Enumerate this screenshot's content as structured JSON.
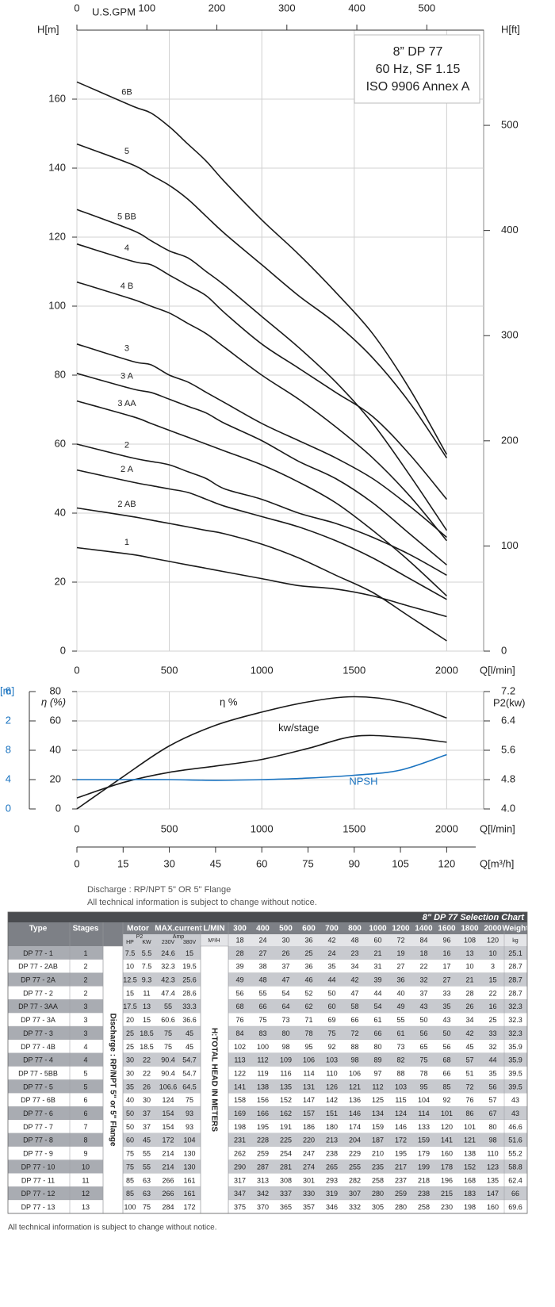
{
  "chart_data": [
    {
      "type": "line",
      "title_lines": [
        "8” DP 77",
        "60 Hz, SF 1.15",
        "ISO 9906 Annex A"
      ],
      "x_label": "Q[l/min]",
      "y_label": "H[m]",
      "y2_label": "H[ft]",
      "x2_label": "U.S.GPM",
      "x": [
        0,
        300,
        400,
        500,
        600,
        700,
        800,
        1000,
        1200,
        1400,
        1600,
        1800,
        2000
      ],
      "xlim": [
        0,
        2200
      ],
      "xticks": [
        0,
        500,
        1000,
        1500,
        2000
      ],
      "x2lim": [
        0,
        581.2
      ],
      "x2ticks": [
        0,
        100,
        200,
        300,
        400,
        500
      ],
      "ylim": [
        0,
        180
      ],
      "yticks": [
        0,
        20,
        40,
        60,
        80,
        100,
        120,
        140,
        160
      ],
      "y2lim": [
        0,
        590.55
      ],
      "y2ticks": [
        0,
        100,
        200,
        300,
        400,
        500
      ],
      "grid": true,
      "series": [
        {
          "name": "6B",
          "color": "#1a1a1a",
          "values": [
            165,
            158,
            156,
            152,
            147,
            142,
            136,
            125,
            115,
            104,
            92,
            76,
            57
          ]
        },
        {
          "name": "5",
          "color": "#1a1a1a",
          "values": [
            147,
            141,
            138,
            135,
            131,
            126,
            121,
            112,
            103,
            95,
            85,
            72,
            56
          ]
        },
        {
          "name": "5 BB",
          "color": "#1a1a1a",
          "values": [
            128,
            122,
            119,
            116,
            114,
            110,
            106,
            97,
            88,
            78,
            66,
            51,
            35
          ]
        },
        {
          "name": "4",
          "color": "#1a1a1a",
          "values": [
            118,
            113,
            112,
            109,
            106,
            103,
            98,
            89,
            82,
            75,
            68,
            57,
            44
          ]
        },
        {
          "name": "4 B",
          "color": "#1a1a1a",
          "values": [
            107,
            102,
            100,
            98,
            95,
            92,
            88,
            80,
            73,
            65,
            56,
            45,
            32
          ]
        },
        {
          "name": "3",
          "color": "#1a1a1a",
          "values": [
            89,
            84,
            83,
            80,
            78,
            75,
            72,
            66,
            61,
            56,
            50,
            42,
            33
          ]
        },
        {
          "name": "3 A",
          "color": "#1a1a1a",
          "values": [
            80.5,
            76,
            75,
            73,
            71,
            69,
            66,
            61,
            55,
            50,
            43,
            34,
            25
          ]
        },
        {
          "name": "3 AA",
          "color": "#1a1a1a",
          "values": [
            72.5,
            68,
            66,
            64,
            62,
            60,
            58,
            54,
            49,
            43,
            35,
            26,
            16
          ]
        },
        {
          "name": "2",
          "color": "#1a1a1a",
          "values": [
            60,
            56,
            55,
            54,
            52,
            50,
            47,
            44,
            40,
            37,
            33,
            28,
            22
          ]
        },
        {
          "name": "2 A",
          "color": "#1a1a1a",
          "values": [
            52.5,
            49,
            48,
            47,
            46,
            44,
            42,
            39,
            36,
            32,
            27,
            21,
            15
          ]
        },
        {
          "name": "2 AB",
          "color": "#1a1a1a",
          "values": [
            41.5,
            39,
            38,
            37,
            36,
            35,
            34,
            31,
            27,
            22,
            17,
            10,
            3
          ]
        },
        {
          "name": "1",
          "color": "#1a1a1a",
          "values": [
            30,
            28,
            27,
            26,
            25,
            24,
            23,
            21,
            19,
            18,
            16,
            13,
            10
          ]
        }
      ]
    },
    {
      "type": "line",
      "x_label": "Q[l/min]",
      "x2_label": "Q[m³/h]",
      "y_label": "η (%)",
      "y2_label": "P2(kw)",
      "y3_label": "[m]",
      "y3_color": "#1a73c0",
      "x": [
        0,
        250,
        500,
        750,
        1000,
        1250,
        1500,
        1750,
        2000
      ],
      "xlim": [
        0,
        2200
      ],
      "xticks": [
        0,
        500,
        1000,
        1500,
        2000
      ],
      "x2lim": [
        0,
        132
      ],
      "x2ticks": [
        0,
        15,
        30,
        45,
        60,
        75,
        90,
        105,
        120
      ],
      "ylim": [
        0,
        80
      ],
      "yticks": [
        0,
        20,
        40,
        60,
        80
      ],
      "y2lim": [
        4.0,
        7.2
      ],
      "y2ticks": [
        {
          "value": 4.0,
          "label": "4.0"
        },
        {
          "value": 4.8,
          "label": "4.8"
        },
        {
          "value": 5.6,
          "label": "5.6"
        },
        {
          "value": 6.4,
          "label": "6.4"
        },
        {
          "value": 7.2,
          "label": "7.2"
        }
      ],
      "y3lim": [
        0,
        16
      ],
      "y3ticks": [
        0,
        4,
        8,
        {
          "value": 12,
          "label": "2"
        },
        {
          "value": 16,
          "label": "6"
        }
      ],
      "grid": true,
      "series": [
        {
          "name": "η %",
          "color": "#1a1a1a",
          "axis": "y",
          "values": [
            0,
            22,
            43,
            57,
            66,
            73,
            76.5,
            73,
            62
          ]
        },
        {
          "name": "kw/stage",
          "color": "#1a1a1a",
          "axis": "y2",
          "values": [
            4.3,
            4.72,
            5.0,
            5.17,
            5.35,
            5.65,
            5.98,
            5.96,
            5.82
          ]
        },
        {
          "name": "NPSH",
          "color": "#1a73c0",
          "axis": "y3",
          "values": [
            4.0,
            4.0,
            4.0,
            3.9,
            4.0,
            4.2,
            4.6,
            5.3,
            7.4
          ]
        }
      ]
    }
  ],
  "notes": [
    "Discharge : RP/NPT 5\" OR 5\" Flange",
    "All technical information is subject to change without notice."
  ],
  "table": {
    "title": "8\" DP 77  Selection Chart",
    "headers": [
      "Type",
      "Stages",
      "Motor",
      "MAX.current",
      "L/MIN",
      "Weight"
    ],
    "subheaders": [
      "P2",
      "HP",
      "KW",
      "Amp",
      "230V",
      "380V",
      "M³/H",
      "kg"
    ],
    "flows_lmin": [
      300,
      400,
      500,
      600,
      700,
      800,
      1000,
      1200,
      1400,
      1600,
      1800,
      2000
    ],
    "flows_m3h": [
      18,
      24,
      30,
      36,
      42,
      48,
      60,
      72,
      84,
      96,
      108,
      120
    ],
    "vertical_labels": [
      "Discharge : RP/NPT 5\" or 5\" Flange",
      "H:TOTAL HEAD IN METERS"
    ],
    "rows": [
      [
        "DP 77 - 1",
        1,
        7.5,
        5.5,
        24.6,
        15,
        28,
        27,
        26,
        25,
        24,
        23,
        21,
        19,
        18,
        16,
        13,
        10,
        25.1
      ],
      [
        "DP 77 - 2AB",
        2,
        10,
        7.5,
        32.3,
        19.5,
        39,
        38,
        37,
        36,
        35,
        34,
        31,
        27,
        22,
        17,
        10,
        3,
        28.7
      ],
      [
        "DP 77 - 2A",
        2,
        12.5,
        9.3,
        42.3,
        25.6,
        49,
        48,
        47,
        46,
        44,
        42,
        39,
        36,
        32,
        27,
        21,
        15,
        28.7
      ],
      [
        "DP 77 - 2",
        2,
        15,
        11,
        47.4,
        28.6,
        56,
        55,
        54,
        52,
        50,
        47,
        44,
        40,
        37,
        33,
        28,
        22,
        28.7
      ],
      [
        "DP 77 - 3AA",
        3,
        17.5,
        13,
        55,
        33.3,
        68,
        66,
        64,
        62,
        60,
        58,
        54,
        49,
        43,
        35,
        26,
        16,
        32.3
      ],
      [
        "DP 77 - 3A",
        3,
        20,
        15,
        60.6,
        36.6,
        76,
        75,
        73,
        71,
        69,
        66,
        61,
        55,
        50,
        43,
        34,
        25,
        32.3
      ],
      [
        "DP 77 - 3",
        3,
        25,
        18.5,
        75,
        45,
        84,
        83,
        80,
        78,
        75,
        72,
        66,
        61,
        56,
        50,
        42,
        33,
        32.3
      ],
      [
        "DP 77 - 4B",
        4,
        25,
        18.5,
        75,
        45,
        102,
        100,
        98,
        95,
        92,
        88,
        80,
        73,
        65,
        56,
        45,
        32,
        35.9
      ],
      [
        "DP 77 - 4",
        4,
        30,
        22,
        90.4,
        54.7,
        113,
        112,
        109,
        106,
        103,
        98,
        89,
        82,
        75,
        68,
        57,
        44,
        35.9
      ],
      [
        "DP 77 - 5BB",
        5,
        30,
        22,
        90.4,
        54.7,
        122,
        119,
        116,
        114,
        110,
        106,
        97,
        88,
        78,
        66,
        51,
        35,
        39.5
      ],
      [
        "DP 77 - 5",
        5,
        35,
        26,
        106.6,
        64.5,
        141,
        138,
        135,
        131,
        126,
        121,
        112,
        103,
        95,
        85,
        72,
        56,
        39.5
      ],
      [
        "DP 77 - 6B",
        6,
        40,
        30,
        124,
        75,
        158,
        156,
        152,
        147,
        142,
        136,
        125,
        115,
        104,
        92,
        76,
        57,
        43
      ],
      [
        "DP 77 - 6",
        6,
        50,
        37,
        154,
        93,
        169,
        166,
        162,
        157,
        151,
        146,
        134,
        124,
        114,
        101,
        86,
        67,
        43
      ],
      [
        "DP 77 - 7",
        7,
        50,
        37,
        154,
        93,
        198,
        195,
        191,
        186,
        180,
        174,
        159,
        146,
        133,
        120,
        101,
        80,
        46.6
      ],
      [
        "DP 77 - 8",
        8,
        60,
        45,
        172,
        104,
        231,
        228,
        225,
        220,
        213,
        204,
        187,
        172,
        159,
        141,
        121,
        98,
        51.6
      ],
      [
        "DP 77 - 9",
        9,
        75,
        55,
        214,
        130,
        262,
        259,
        254,
        247,
        238,
        229,
        210,
        195,
        179,
        160,
        138,
        110,
        55.2
      ],
      [
        "DP 77 - 10",
        10,
        75,
        55,
        214,
        130,
        290,
        287,
        281,
        274,
        265,
        255,
        235,
        217,
        199,
        178,
        152,
        123,
        58.8
      ],
      [
        "DP 77 - 11",
        11,
        85,
        63,
        266,
        161,
        317,
        313,
        308,
        301,
        293,
        282,
        258,
        237,
        218,
        196,
        168,
        135,
        62.4
      ],
      [
        "DP 77 - 12",
        12,
        85,
        63,
        266,
        161,
        347,
        342,
        337,
        330,
        319,
        307,
        280,
        259,
        238,
        215,
        183,
        147,
        66
      ],
      [
        "DP 77 - 13",
        13,
        100,
        75,
        284,
        172,
        375,
        370,
        365,
        357,
        346,
        332,
        305,
        280,
        258,
        230,
        198,
        160,
        69.6
      ]
    ],
    "footer": "All technical information is subject to change without notice."
  }
}
